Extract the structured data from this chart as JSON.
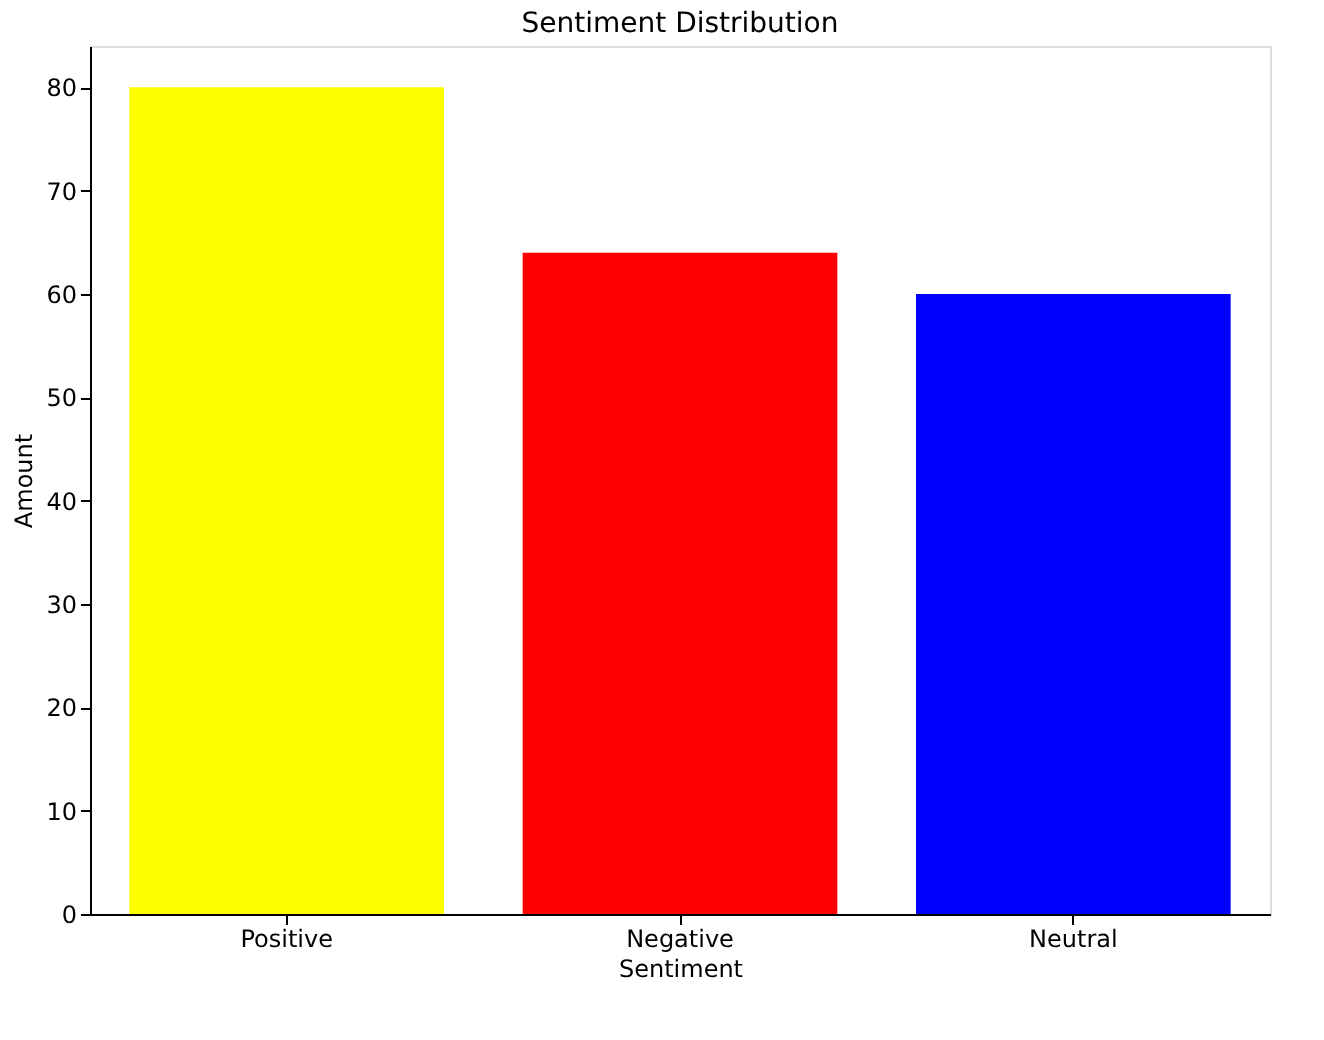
{
  "chart_data": {
    "type": "bar",
    "title": "Sentiment Distribution",
    "xlabel": "Sentiment",
    "ylabel": "Amount",
    "categories": [
      "Positive",
      "Negative",
      "Neutral"
    ],
    "values": [
      80,
      64,
      60
    ],
    "colors": [
      "#ffff00",
      "#ff0000",
      "#0000ff"
    ],
    "ylim": [
      0,
      84
    ],
    "yticks": [
      0,
      10,
      20,
      30,
      40,
      50,
      60,
      70,
      80
    ],
    "grid": false,
    "legend": false
  }
}
